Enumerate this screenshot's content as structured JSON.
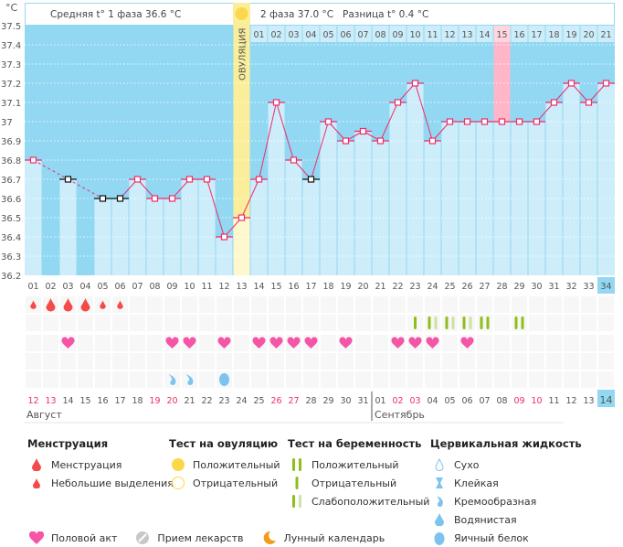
{
  "header": {
    "unit": "°C",
    "phase1_avg": "Средняя t° 1 фаза 36.6 °C",
    "phase2_avg": "2 фаза 37.0 °C",
    "difference": "Разница t° 0.4 °C",
    "ovulation_label": "ОВУЛЯЦИЯ"
  },
  "colors": {
    "bg_dark": "#92d8f2",
    "bar": "#cdedfb",
    "line": "#ee2d6a",
    "ovulation": "#fbee9a",
    "highlight": "#ffb6c8",
    "menstruation": "#f54a4a",
    "heart": "#f455a6",
    "test_pos": "#8fbd1b",
    "test_weak": "#cde3a0",
    "fluid": "#7cc4ef"
  },
  "chart_data": {
    "type": "line",
    "ylim": [
      36.2,
      37.5
    ],
    "yticks": [
      "37.5",
      "37.4",
      "37.3",
      "37.2",
      "37.1",
      "37",
      "36.9",
      "36.8",
      "36.7",
      "36.6",
      "36.5",
      "36.4",
      "36.3",
      "36.2"
    ],
    "cycle_days": [
      "01",
      "02",
      "03",
      "04",
      "05",
      "06",
      "07",
      "08",
      "09",
      "10",
      "11",
      "12",
      "13",
      "14",
      "15",
      "16",
      "17",
      "18",
      "19",
      "20",
      "21",
      "22",
      "23",
      "24",
      "25",
      "26",
      "27",
      "28",
      "29",
      "30",
      "31",
      "32",
      "33",
      "34"
    ],
    "phase2_days": [
      "01",
      "02",
      "03",
      "04",
      "05",
      "06",
      "07",
      "08",
      "09",
      "10",
      "11",
      "12",
      "13",
      "14",
      "15",
      "16",
      "17",
      "18",
      "19",
      "20",
      "21"
    ],
    "phase2_start_day": 14,
    "highlighted_phase2_day": 15,
    "ovulation_day": 13,
    "temperatures": [
      36.8,
      null,
      36.7,
      null,
      36.6,
      36.6,
      36.7,
      36.6,
      36.6,
      36.7,
      36.7,
      36.4,
      36.5,
      36.7,
      37.1,
      36.8,
      36.7,
      37.0,
      36.9,
      36.95,
      36.9,
      37.1,
      37.2,
      36.9,
      37.0,
      37.0,
      37.0,
      37.0,
      37.0,
      37.0,
      37.1,
      37.2,
      37.1,
      37.2
    ],
    "excluded_days": [
      3,
      5,
      6,
      17
    ],
    "dates": [
      "12",
      "13",
      "14",
      "15",
      "16",
      "17",
      "18",
      "19",
      "20",
      "21",
      "22",
      "23",
      "24",
      "25",
      "26",
      "27",
      "28",
      "29",
      "30",
      "31",
      "01",
      "02",
      "03",
      "04",
      "05",
      "06",
      "07",
      "08",
      "09",
      "10",
      "11",
      "12",
      "13",
      "14"
    ],
    "weekend_days": [
      1,
      2,
      8,
      9,
      15,
      16,
      22,
      23,
      29,
      30
    ],
    "months": [
      "Август",
      "Сентябрь"
    ],
    "menstruation": {
      "1": "small",
      "2": "large",
      "3": "large",
      "4": "large",
      "5": "small",
      "6": "small"
    },
    "pregnancy_tests": {
      "23": "negative",
      "24": "weak",
      "25": "weak",
      "26": "weak",
      "27": "positive",
      "29": "positive"
    },
    "intercourse_days": [
      3,
      9,
      10,
      12,
      14,
      15,
      16,
      17,
      19,
      22,
      23,
      24,
      26
    ],
    "cervical_fluid": {
      "9": "creamy",
      "10": "creamy",
      "12": "egg-white"
    }
  },
  "legend": {
    "menstruation": {
      "title": "Менструация",
      "items": [
        "Менструация",
        "Небольшие выделения"
      ]
    },
    "ovulation_test": {
      "title": "Тест на овуляцию",
      "items": [
        "Положительный",
        "Отрицательный"
      ]
    },
    "pregnancy_test": {
      "title": "Тест на беременность",
      "items": [
        "Положительный",
        "Отрицательный",
        "Слабоположительный"
      ]
    },
    "cervical": {
      "title": "Цервикальная жидкость",
      "items": [
        "Сухо",
        "Клейкая",
        "Кремообразная",
        "Водянистая",
        "Яичный белок"
      ]
    },
    "other": [
      "Половой акт",
      "Прием лекарств",
      "Лунный календарь"
    ]
  }
}
